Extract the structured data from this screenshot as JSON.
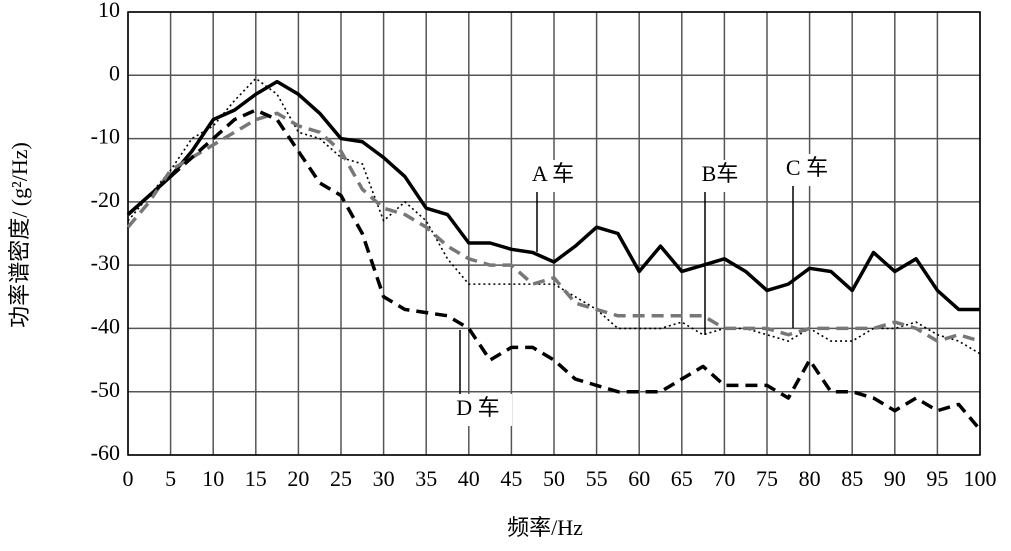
{
  "chart_data": {
    "type": "line",
    "xlabel": "频率/Hz",
    "ylabel": "功率谱密度/ (g²/Hz)",
    "xlim": [
      0,
      100
    ],
    "ylim": [
      -60,
      10
    ],
    "xticks": [
      0,
      5,
      10,
      15,
      20,
      25,
      30,
      35,
      40,
      45,
      50,
      55,
      60,
      65,
      70,
      75,
      80,
      85,
      90,
      95,
      100
    ],
    "yticks": [
      10,
      0,
      -10,
      -20,
      -30,
      -40,
      -50,
      -60
    ],
    "grid": true,
    "x": [
      0,
      2.5,
      5,
      7.5,
      10,
      12.5,
      15,
      17.5,
      20,
      22.5,
      25,
      27.5,
      30,
      32.5,
      35,
      37.5,
      40,
      42.5,
      45,
      47.5,
      50,
      52.5,
      55,
      57.5,
      60,
      62.5,
      65,
      67.5,
      70,
      72.5,
      75,
      77.5,
      80,
      82.5,
      85,
      87.5,
      90,
      92.5,
      95,
      97.5,
      100
    ],
    "series": [
      {
        "name": "A 车",
        "color": "#000000",
        "style": "solid",
        "values": [
          -22,
          -19,
          -16,
          -12,
          -7,
          -5.5,
          -3,
          -1,
          -3,
          -6,
          -10,
          -10.5,
          -13,
          -16,
          -21,
          -22,
          -26.5,
          -26.5,
          -27.5,
          -28,
          -29.5,
          -27,
          -24,
          -25,
          -31,
          -27,
          -31,
          -30,
          -29,
          -31,
          -34,
          -33,
          -30.5,
          -31,
          -34,
          -28,
          -31,
          -29,
          -34,
          -37,
          -37
        ]
      },
      {
        "name": "B车",
        "color": "#000000",
        "style": "dotted",
        "values": [
          -23,
          -19,
          -15,
          -10,
          -8,
          -4,
          -0.5,
          -3,
          -9,
          -10,
          -13,
          -14,
          -23,
          -20,
          -23,
          -29,
          -33,
          -33,
          -33,
          -33,
          -33,
          -35,
          -37,
          -40,
          -40,
          -40,
          -39,
          -41,
          -40,
          -40,
          -41,
          -42,
          -40,
          -42,
          -42,
          -40,
          -40,
          -39,
          -41,
          -42,
          -44
        ]
      },
      {
        "name": "C 车",
        "color": "#777777",
        "style": "dashed",
        "values": [
          -24,
          -20,
          -15,
          -13,
          -11,
          -9,
          -7,
          -6,
          -8,
          -9,
          -12,
          -18,
          -21,
          -22,
          -24,
          -27,
          -29,
          -30,
          -30,
          -33,
          -32,
          -36,
          -37,
          -38,
          -38,
          -38,
          -38,
          -38,
          -40,
          -40,
          -40,
          -41,
          -40,
          -40,
          -40,
          -40,
          -39,
          -40,
          -42,
          -41,
          -42
        ]
      },
      {
        "name": "D 车",
        "color": "#000000",
        "style": "dashed",
        "values": [
          -22,
          -19,
          -16,
          -13,
          -10,
          -7,
          -5.5,
          -7,
          -12,
          -17,
          -19,
          -25,
          -35,
          -37,
          -37.5,
          -38,
          -40,
          -45,
          -43,
          -43,
          -45,
          -48,
          -49,
          -50,
          -50,
          -50,
          -48,
          -46,
          -49,
          -49,
          -49,
          -51,
          -45,
          -50,
          -50,
          -51,
          -53,
          -51,
          -53,
          -52,
          -56
        ]
      }
    ]
  }
}
